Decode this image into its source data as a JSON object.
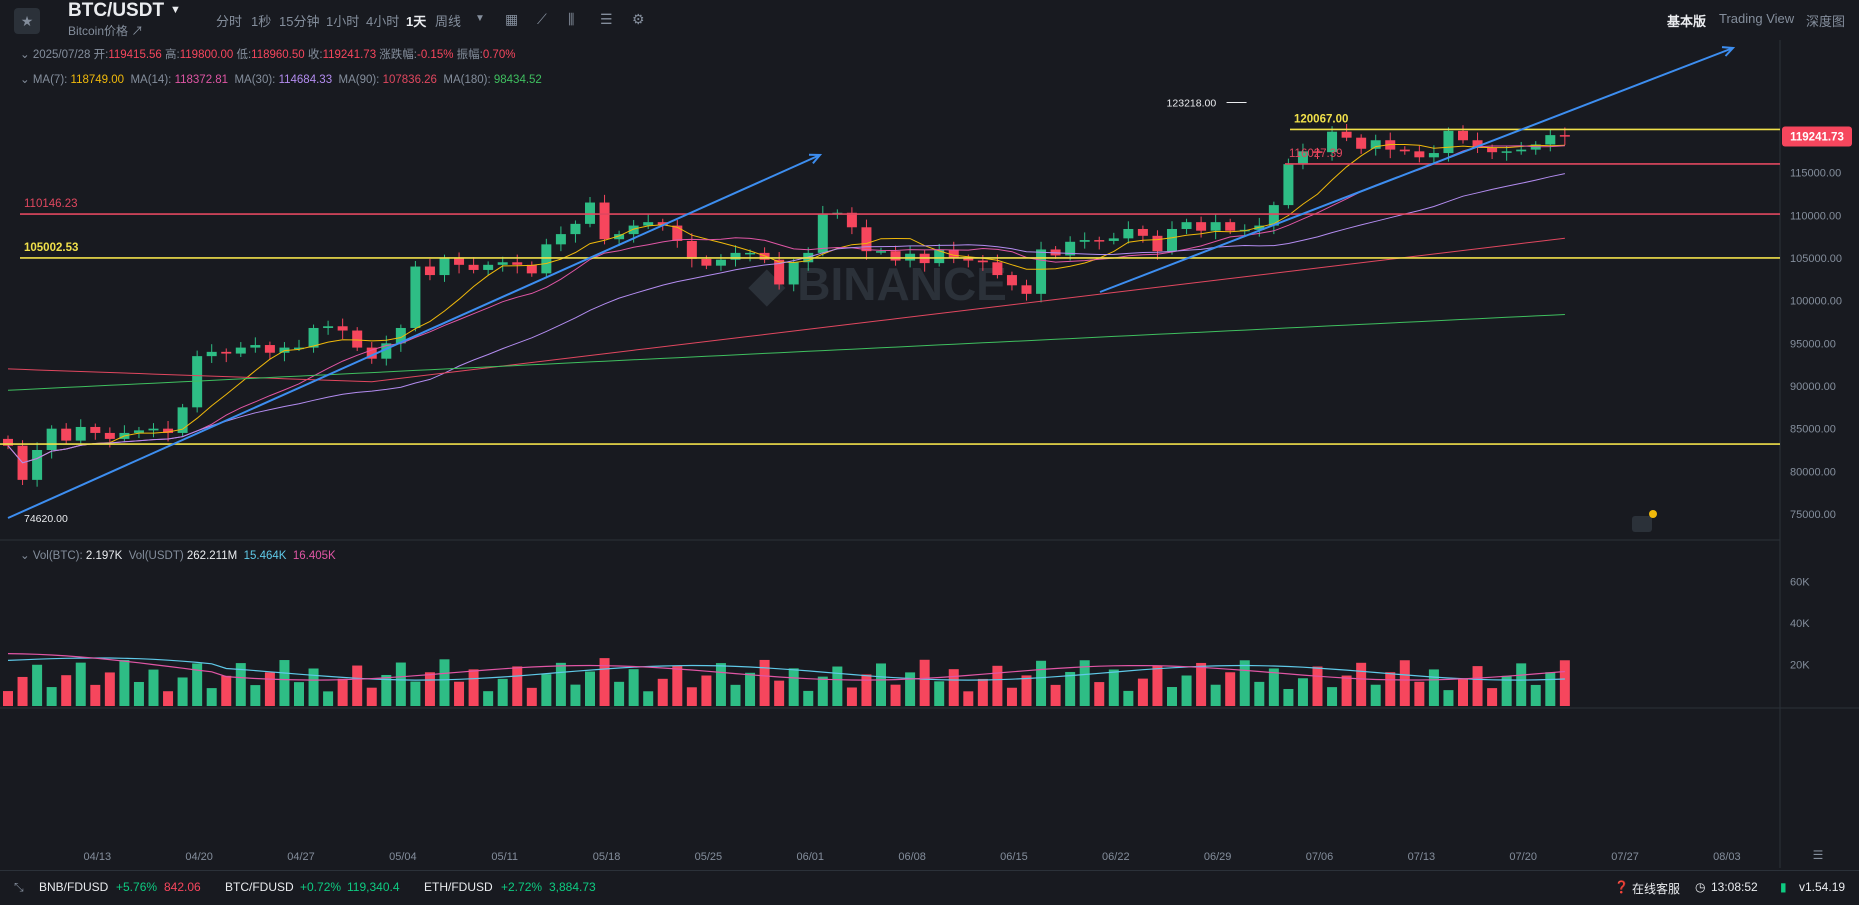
{
  "header": {
    "symbol": "BTC/USDT",
    "subtitle": "Bitcoin价格 ↗",
    "timeframes": [
      "分时",
      "1秒",
      "15分钟",
      "1小时",
      "4小时",
      "1天",
      "周线"
    ],
    "active_timeframe": "1天",
    "right_tabs": [
      "基本版",
      "Trading View",
      "深度图"
    ],
    "active_tab": "基本版"
  },
  "ohlc": {
    "date": "2025/07/28",
    "open_label": "开:",
    "open": "119415.56",
    "high_label": "高:",
    "high": "119800.00",
    "low_label": "低:",
    "low": "118960.50",
    "close_label": "收:",
    "close": "119241.73",
    "change_label": "涨跌幅:",
    "change": "-0.15%",
    "amp_label": "振幅:",
    "amp": "0.70%"
  },
  "ma": [
    {
      "label": "MA(7):",
      "value": "118749.00",
      "color": "#f0b90b"
    },
    {
      "label": "MA(14):",
      "value": "118372.81",
      "color": "#e056a5"
    },
    {
      "label": "MA(30):",
      "value": "114684.33",
      "color": "#b38cf0"
    },
    {
      "label": "MA(90):",
      "value": "107836.26",
      "color": "#e0475f"
    },
    {
      "label": "MA(180):",
      "value": "98434.52",
      "color": "#3fbf5f"
    }
  ],
  "volume_info": {
    "label_btc": "Vol(BTC):",
    "btc": "2.197K",
    "label_usdt": "Vol(USDT)",
    "usdt": "262.211M",
    "ma1": "15.464K",
    "ma2": "16.405K"
  },
  "levels": [
    {
      "price": 120067.0,
      "label": "120067.00",
      "color": "#f0e04a"
    },
    {
      "price": 116027.39,
      "label": "116027.39",
      "color": "#e0475f"
    },
    {
      "price": 110146.23,
      "label": "110146.23",
      "color": "#e0475f"
    },
    {
      "price": 105002.53,
      "label": "105002.53",
      "color": "#f0e04a"
    },
    {
      "price": 83200,
      "label": "",
      "color": "#f0e04a"
    }
  ],
  "annotations": {
    "high_marker": "123218.00",
    "low_marker": "74620.00",
    "current_price": "119241.73",
    "watermark": "BINANCE"
  },
  "price_axis": [
    "75000.00",
    "80000.00",
    "85000.00",
    "90000.00",
    "95000.00",
    "100000.00",
    "105000.00",
    "110000.00",
    "115000.00",
    "120000.00"
  ],
  "volume_axis": [
    "20K",
    "40K",
    "60K"
  ],
  "time_axis": [
    "04/13",
    "04/20",
    "04/27",
    "05/04",
    "05/11",
    "05/18",
    "05/25",
    "06/01",
    "06/08",
    "06/15",
    "06/22",
    "06/29",
    "07/06",
    "07/13",
    "07/20",
    "07/27",
    "08/03"
  ],
  "footer": {
    "tickers": [
      {
        "name": "BNB/FDUSD",
        "change": "+5.76%",
        "price": "842.06"
      },
      {
        "name": "BTC/FDUSD",
        "change": "+0.72%",
        "price": "119,340.4"
      },
      {
        "name": "ETH/FDUSD",
        "change": "+2.72%",
        "price": "3,884.73"
      }
    ],
    "support": "在线客服",
    "time": "13:08:52",
    "version": "v1.54.19"
  },
  "chart_data": {
    "type": "candlestick",
    "start_date": "2025-04-07",
    "closes": [
      83000,
      79000,
      82500,
      85000,
      83600,
      85200,
      84500,
      83800,
      84500,
      84800,
      85000,
      84500,
      87500,
      93500,
      94000,
      93800,
      94500,
      94800,
      93900,
      94500,
      94500,
      96800,
      97000,
      96500,
      94500,
      93200,
      95000,
      96800,
      104000,
      103000,
      105000,
      104200,
      103600,
      104200,
      104500,
      104200,
      103200,
      106600,
      107800,
      109000,
      111500,
      107200,
      107800,
      108800,
      109200,
      108800,
      107000,
      104900,
      104100,
      104800,
      105600,
      105600,
      104800,
      101900,
      104500,
      105600,
      110200,
      110300,
      108600,
      105800,
      105800,
      104700,
      105500,
      104400,
      106000,
      105000,
      104700,
      104500,
      103000,
      101800,
      100800,
      106000,
      105300,
      106900,
      107100,
      107000,
      107300,
      108400,
      107600,
      105800,
      108400,
      109200,
      108200,
      109200,
      108200,
      108300,
      108800,
      111200,
      116000,
      117500,
      117400,
      119800,
      119100,
      117800,
      118800,
      117700,
      117500,
      116800,
      117300,
      119900,
      118800,
      117900,
      117400,
      117500,
      117700,
      118300,
      119400,
      119241
    ]
  }
}
